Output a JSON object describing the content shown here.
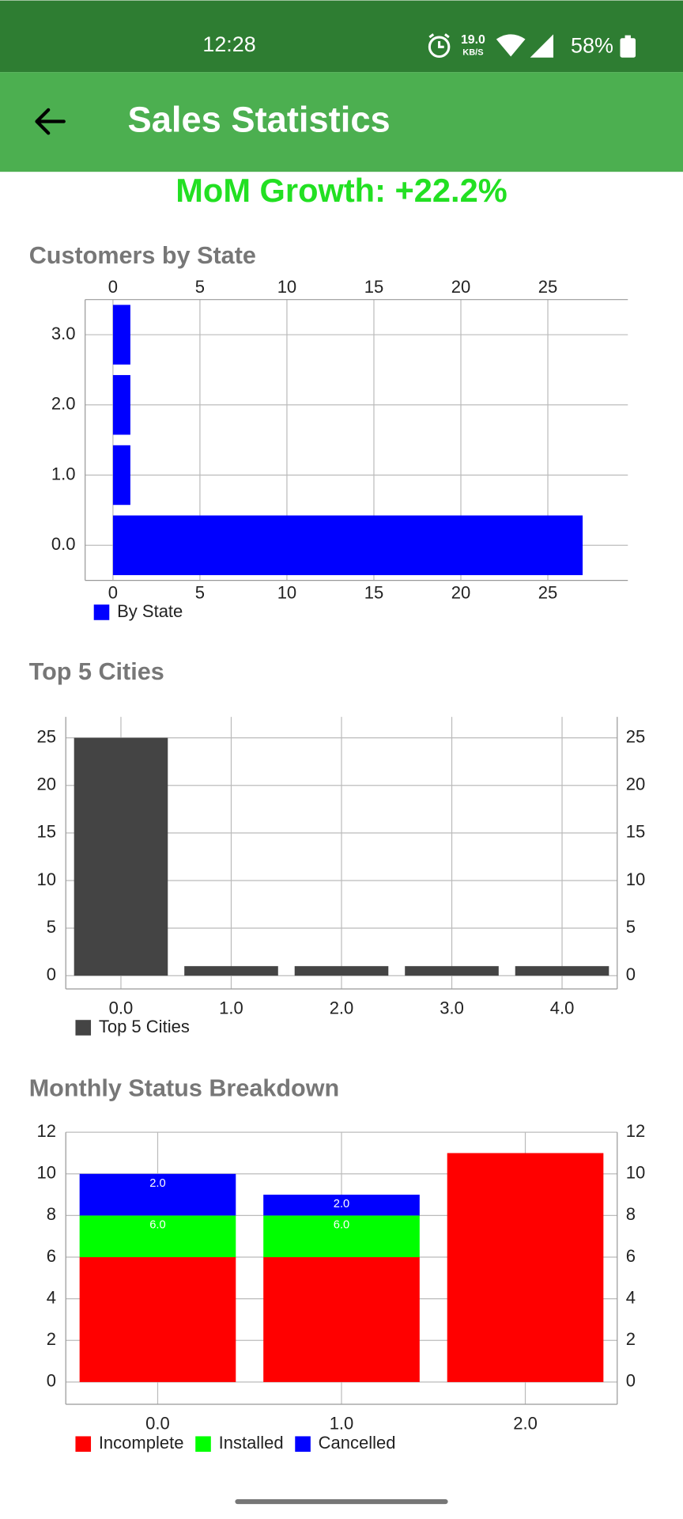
{
  "status_bar": {
    "time": "12:28",
    "speed": "19.0",
    "speed_unit": "KB/S",
    "battery": "58%"
  },
  "app_bar": {
    "title": "Sales Statistics"
  },
  "growth": "MoM Growth: +22.2%",
  "chart_data": [
    {
      "type": "hbar",
      "title": "Customers by State",
      "categories": [
        "0.0",
        "1.0",
        "2.0",
        "3.0"
      ],
      "series": [
        {
          "name": "By State",
          "color": "#0000ff",
          "values": [
            27,
            1,
            1,
            1
          ]
        }
      ],
      "xlim": [
        -1.6,
        29.6
      ],
      "xticks": [
        0,
        5,
        10,
        15,
        20,
        25
      ],
      "grid": true
    },
    {
      "type": "bar",
      "title": "Top 5 Cities",
      "categories": [
        "0.0",
        "1.0",
        "2.0",
        "3.0",
        "4.0"
      ],
      "series": [
        {
          "name": "Top 5 Cities",
          "color": "#444444",
          "values": [
            25,
            1,
            1,
            1,
            1
          ]
        }
      ],
      "ylim": [
        -1.4,
        27.2
      ],
      "yticks": [
        0,
        5,
        10,
        15,
        20,
        25
      ],
      "grid": true
    },
    {
      "type": "stacked_bar",
      "title": "Monthly Status Breakdown",
      "categories": [
        "0.0",
        "1.0",
        "2.0"
      ],
      "series": [
        {
          "name": "Incomplete",
          "color": "#ff0000",
          "values": [
            6,
            6,
            11
          ]
        },
        {
          "name": "Installed",
          "color": "#00ff00",
          "values": [
            2,
            2,
            0
          ]
        },
        {
          "name": "Cancelled",
          "color": "#0000ff",
          "values": [
            2,
            1,
            0
          ]
        }
      ],
      "annotations": [
        "6.0",
        "2.0",
        "6.0",
        "2.0"
      ],
      "ylim": [
        -1.07,
        12
      ],
      "yticks": [
        0,
        2,
        4,
        6,
        8,
        10,
        12
      ],
      "grid": true
    }
  ]
}
